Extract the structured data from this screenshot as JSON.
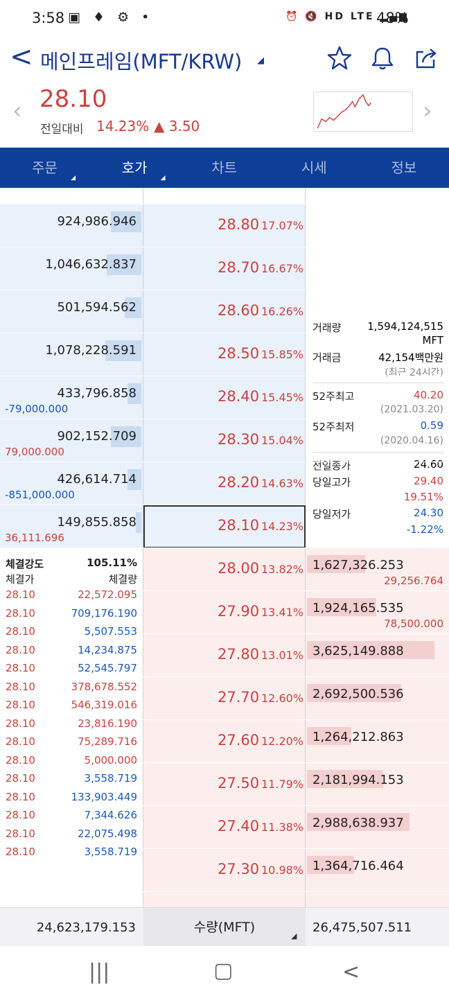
{
  "status": {
    "time": "3:58",
    "battery": "48%",
    "net_labels": "HD LTE"
  },
  "header": {
    "title": "메인프레임(MFT/KRW)"
  },
  "summary": {
    "price": "28.10",
    "prev_label": "전일대비",
    "rate": "14.23%",
    "diff": "▲ 3.50"
  },
  "tabs": [
    {
      "label": "주문",
      "active": false,
      "sub": true
    },
    {
      "label": "호가",
      "active": true,
      "sub": true
    },
    {
      "label": "차트",
      "active": false
    },
    {
      "label": "시세",
      "active": false
    },
    {
      "label": "정보",
      "active": false
    }
  ],
  "asks": [
    {
      "qty": "924,986.946",
      "price": "28.80",
      "pct": "17.07%",
      "chg": "",
      "chg_color": "",
      "bar": 0.22
    },
    {
      "qty": "1,046,632.837",
      "price": "28.70",
      "pct": "16.67%",
      "chg": "",
      "chg_color": "",
      "bar": 0.25
    },
    {
      "qty": "501,594.562",
      "price": "28.60",
      "pct": "16.26%",
      "chg": "",
      "chg_color": "",
      "bar": 0.12
    },
    {
      "qty": "1,078,228.591",
      "price": "28.50",
      "pct": "15.85%",
      "chg": "",
      "chg_color": "",
      "bar": 0.26
    },
    {
      "qty": "433,796.858",
      "price": "28.40",
      "pct": "15.45%",
      "chg": "-79,000.000",
      "chg_color": "blue",
      "bar": 0.1
    },
    {
      "qty": "902,152.709",
      "price": "28.30",
      "pct": "15.04%",
      "chg": "79,000.000",
      "chg_color": "red",
      "bar": 0.22
    },
    {
      "qty": "426,614.714",
      "price": "28.20",
      "pct": "14.63%",
      "chg": "-851,000.000",
      "chg_color": "blue",
      "bar": 0.1
    },
    {
      "qty": "149,855.858",
      "price": "28.10",
      "pct": "14.23%",
      "chg": "36,111.696",
      "chg_color": "red",
      "bar": 0.04
    }
  ],
  "bids": [
    {
      "qty": "1,627,326.253",
      "price": "28.00",
      "pct": "13.82%",
      "chg": "29,256.764",
      "bar": 0.42
    },
    {
      "qty": "1,924,165.535",
      "price": "27.90",
      "pct": "13.41%",
      "chg": "78,500.000",
      "bar": 0.5
    },
    {
      "qty": "3,625,149.888",
      "price": "27.80",
      "pct": "13.01%",
      "chg": "",
      "bar": 0.92
    },
    {
      "qty": "2,692,500.536",
      "price": "27.70",
      "pct": "12.60%",
      "chg": "",
      "bar": 0.68
    },
    {
      "qty": "1,264,212.863",
      "price": "27.60",
      "pct": "12.20%",
      "chg": "",
      "bar": 0.32
    },
    {
      "qty": "2,181,994.153",
      "price": "27.50",
      "pct": "11.79%",
      "chg": "",
      "bar": 0.55
    },
    {
      "qty": "2,988,638.937",
      "price": "27.40",
      "pct": "11.38%",
      "chg": "",
      "bar": 0.74
    },
    {
      "qty": "1,364,716.464",
      "price": "27.30",
      "pct": "10.98%",
      "chg": "",
      "bar": 0.34
    }
  ],
  "info": {
    "volume_label": "거래량",
    "volume": "1,594,124,515",
    "volume_unit": "MFT",
    "amount_label": "거래금",
    "amount": "42,154백만원",
    "period": "(최근 24시간)",
    "high52_label": "52주최고",
    "high52": "40.20",
    "high52_date": "(2021.03.20)",
    "low52_label": "52주최저",
    "low52": "0.59",
    "low52_date": "(2020.04.16)",
    "prev_close_label": "전일종가",
    "prev_close": "24.60",
    "day_high_label": "당일고가",
    "day_high": "29.40",
    "day_high_pct": "19.51%",
    "day_low_label": "당일저가",
    "day_low": "24.30",
    "day_low_pct": "-1.22%"
  },
  "trades": {
    "strength_label": "체결강도",
    "strength": "105.11%",
    "price_col": "체결가",
    "qty_col": "체결량",
    "rows": [
      {
        "price": "28.10",
        "qty": "22,572.095",
        "side": "red"
      },
      {
        "price": "28.10",
        "qty": "709,176.190",
        "side": "blue"
      },
      {
        "price": "28.10",
        "qty": "5,507.553",
        "side": "blue"
      },
      {
        "price": "28.10",
        "qty": "14,234.875",
        "side": "blue"
      },
      {
        "price": "28.10",
        "qty": "52,545.797",
        "side": "blue"
      },
      {
        "price": "28.10",
        "qty": "378,678.552",
        "side": "red"
      },
      {
        "price": "28.10",
        "qty": "546,319.016",
        "side": "red"
      },
      {
        "price": "28.10",
        "qty": "23,816.190",
        "side": "red"
      },
      {
        "price": "28.10",
        "qty": "75,289.716",
        "side": "red"
      },
      {
        "price": "28.10",
        "qty": "5,000.000",
        "side": "red"
      },
      {
        "price": "28.10",
        "qty": "3,558.719",
        "side": "blue"
      },
      {
        "price": "28.10",
        "qty": "133,903.449",
        "side": "blue"
      },
      {
        "price": "28.10",
        "qty": "7,344.626",
        "side": "blue"
      },
      {
        "price": "28.10",
        "qty": "22,075.498",
        "side": "blue"
      },
      {
        "price": "28.10",
        "qty": "3,558.719",
        "side": "blue"
      }
    ]
  },
  "footer": {
    "ask_total": "24,623,179.153",
    "unit_label": "수량(MFT)",
    "bid_total": "26,475,507.511"
  },
  "colors": {
    "accent": "#0d3e98",
    "up": "#c9423e",
    "down": "#1a58b8"
  }
}
